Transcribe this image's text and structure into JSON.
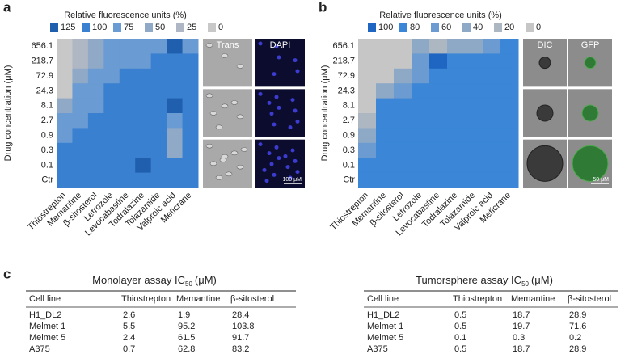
{
  "panel_labels": [
    "a",
    "b",
    "c"
  ],
  "chart_data": [
    {
      "type": "heatmap",
      "legend_title": "Relative fluorescence units (%)",
      "y_label": "Drug concentration (μM)",
      "rows": [
        "656.1",
        "218.7",
        "72.9",
        "24.3",
        "8.1",
        "2.7",
        "0.9",
        "0.3",
        "0.1",
        "Ctr"
      ],
      "columns": [
        "Thiostrepton",
        "Memantine",
        "β-sitosterol",
        "Letrozole",
        "Levocabastine",
        "Todralazine",
        "Tolazamide",
        "Valproic acid",
        "Meticrane"
      ],
      "scale": [
        {
          "value": 125,
          "color": "#1f5fae"
        },
        {
          "value": 100,
          "color": "#3a80d0"
        },
        {
          "value": 75,
          "color": "#6a9bd2"
        },
        {
          "value": 50,
          "color": "#8fa9c7"
        },
        {
          "value": 25,
          "color": "#aeb7c3"
        },
        {
          "value": 0,
          "color": "#c8c8c8"
        }
      ],
      "z": [
        [
          0,
          25,
          50,
          75,
          75,
          75,
          75,
          125,
          75
        ],
        [
          0,
          25,
          50,
          75,
          75,
          75,
          100,
          100,
          100
        ],
        [
          0,
          50,
          75,
          75,
          100,
          100,
          100,
          100,
          100
        ],
        [
          0,
          75,
          75,
          100,
          100,
          100,
          100,
          100,
          100
        ],
        [
          50,
          75,
          75,
          100,
          100,
          100,
          100,
          125,
          100
        ],
        [
          75,
          75,
          100,
          100,
          100,
          100,
          100,
          75,
          100
        ],
        [
          75,
          100,
          100,
          100,
          100,
          100,
          100,
          50,
          100
        ],
        [
          100,
          100,
          100,
          100,
          100,
          100,
          100,
          50,
          100
        ],
        [
          100,
          100,
          100,
          100,
          100,
          125,
          100,
          100,
          100
        ],
        [
          100,
          100,
          100,
          100,
          100,
          100,
          100,
          100,
          100
        ]
      ]
    },
    {
      "type": "heatmap",
      "legend_title": "Relative fluorescence units (%)",
      "y_label": "Drug concentration (μM)",
      "rows": [
        "656.1",
        "218.7",
        "72.9",
        "24.3",
        "8.1",
        "2.7",
        "0.9",
        "0.3",
        "0.1",
        "Ctr"
      ],
      "columns": [
        "Thiostrepton",
        "Memantine",
        "β-sitosterol",
        "Letrozole",
        "Levocabastine",
        "Todralazine",
        "Tolazamide",
        "Valproic acid",
        "Meticrane"
      ],
      "scale": [
        {
          "value": 100,
          "color": "#1f66c2"
        },
        {
          "value": 80,
          "color": "#3b86d6"
        },
        {
          "value": 60,
          "color": "#6b9bd0"
        },
        {
          "value": 40,
          "color": "#8ea9c6"
        },
        {
          "value": 20,
          "color": "#adb7c2"
        },
        {
          "value": 0,
          "color": "#c6c6c6"
        }
      ],
      "z": [
        [
          0,
          0,
          0,
          40,
          20,
          40,
          40,
          60,
          80
        ],
        [
          0,
          0,
          0,
          60,
          100,
          80,
          80,
          80,
          80
        ],
        [
          0,
          0,
          40,
          60,
          80,
          80,
          80,
          80,
          80
        ],
        [
          0,
          40,
          60,
          80,
          80,
          80,
          80,
          80,
          80
        ],
        [
          0,
          80,
          80,
          80,
          80,
          80,
          80,
          80,
          80
        ],
        [
          20,
          80,
          80,
          80,
          80,
          80,
          80,
          80,
          80
        ],
        [
          40,
          80,
          80,
          80,
          80,
          80,
          80,
          80,
          80
        ],
        [
          60,
          80,
          80,
          80,
          80,
          80,
          80,
          80,
          80
        ],
        [
          80,
          80,
          80,
          80,
          80,
          80,
          80,
          80,
          80
        ],
        [
          80,
          80,
          80,
          80,
          80,
          80,
          80,
          80,
          80
        ]
      ]
    }
  ],
  "micrographs": [
    {
      "headers": [
        "Trans",
        "DAPI"
      ],
      "scale_bar": "100 μM"
    },
    {
      "headers": [
        "DIC",
        "GFP"
      ],
      "scale_bar": "50 μM"
    }
  ],
  "tables": [
    {
      "title": "Monolayer assay IC",
      "title_sub": "50",
      "title_unit": "(μM)",
      "header": [
        "Cell line",
        "Thiostrepton",
        "Memantine",
        "β-sitosterol"
      ],
      "rows": [
        [
          "H1_DL2",
          2.6,
          1.9,
          28.4
        ],
        [
          "Melmet 1",
          5.5,
          95.2,
          103.8
        ],
        [
          "Melmet 5",
          2.4,
          61.5,
          91.7
        ],
        [
          "A375",
          0.7,
          62.8,
          83.2
        ]
      ]
    },
    {
      "title": "Tumorsphere assay IC",
      "title_sub": "50",
      "title_unit": "(μM)",
      "header": [
        "Cell line",
        "Thiostrepton",
        "Memantine",
        "β-sitosterol"
      ],
      "rows": [
        [
          "H1_DL2",
          0.5,
          18.7,
          28.9
        ],
        [
          "Melmet 1",
          0.5,
          19.7,
          71.6
        ],
        [
          "Melmet 5",
          0.1,
          0.3,
          0.2
        ],
        [
          "A375",
          0.5,
          18.7,
          28.9
        ]
      ]
    }
  ]
}
